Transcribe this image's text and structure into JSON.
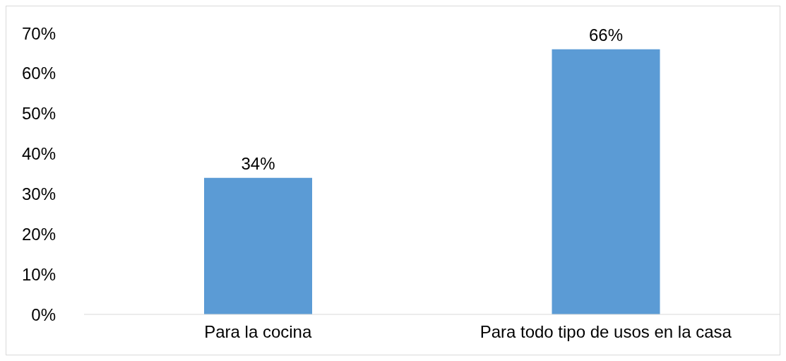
{
  "chart_data": {
    "type": "bar",
    "categories": [
      "Para la cocina",
      "Para todo tipo de usos en la casa"
    ],
    "values": [
      34,
      66
    ],
    "color": "#5b9bd5",
    "value_labels": [
      "34%",
      "66%"
    ],
    "ylim": [
      0,
      70
    ],
    "yticks": [
      {
        "value": 0,
        "label": "0%"
      },
      {
        "value": 10,
        "label": "10%"
      },
      {
        "value": 20,
        "label": "20%"
      },
      {
        "value": 30,
        "label": "30%"
      },
      {
        "value": 40,
        "label": "40%"
      },
      {
        "value": 50,
        "label": "50%"
      },
      {
        "value": 60,
        "label": "60%"
      },
      {
        "value": 70,
        "label": "70%"
      }
    ],
    "grid": false,
    "legend": false
  }
}
